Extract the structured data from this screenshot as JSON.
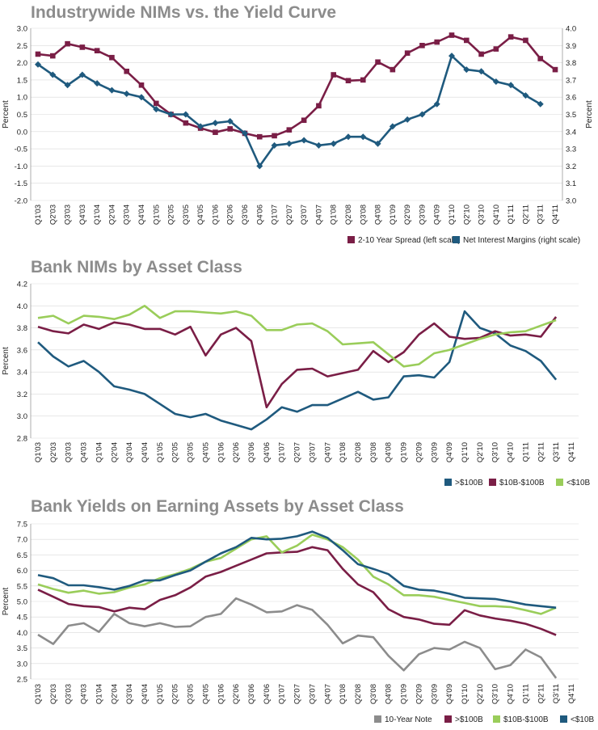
{
  "chart_data": [
    {
      "type": "line",
      "title": "Industrywide NIMs vs. the Yield Curve",
      "ylabel": "Percent",
      "y2label": "Percent",
      "ylim": [
        -2.0,
        3.0
      ],
      "y2lim": [
        3.0,
        4.0
      ],
      "yticks": [
        "3.0",
        "2.5",
        "2.0",
        "1.5",
        "1.0",
        "0.5",
        "0.0",
        "-0.5",
        "-1.0",
        "-1.5",
        "-2.0"
      ],
      "y2ticks": [
        "4.0",
        "3.9",
        "3.8",
        "3.7",
        "3.6",
        "3.5",
        "3.4",
        "3.3",
        "3.2",
        "3.1",
        "3.0"
      ],
      "categories": [
        "Q1'03",
        "Q2'03",
        "Q3'03",
        "Q4'03",
        "Q1'04",
        "Q2'04",
        "Q3'04",
        "Q4'04",
        "Q1'05",
        "Q2'05",
        "Q3'05",
        "Q4'05",
        "Q1'06",
        "Q2'06",
        "Q3'06",
        "Q4'06",
        "Q1'07",
        "Q2'07",
        "Q3'07",
        "Q4'07",
        "Q1'08",
        "Q2'08",
        "Q3'08",
        "Q4'08",
        "Q1'09",
        "Q2'09",
        "Q3'09",
        "Q4'09",
        "Q1'10",
        "Q2'10",
        "Q3'10",
        "Q4'10",
        "Q1'11",
        "Q2'11",
        "Q3'11",
        "Q4'11"
      ],
      "series": [
        {
          "name": "2-10 Year Spread (left scale)",
          "color": "#7a1e46",
          "marker": "square",
          "axis": "left",
          "values": [
            2.25,
            2.2,
            2.55,
            2.45,
            2.35,
            2.15,
            1.75,
            1.35,
            0.82,
            0.5,
            0.25,
            0.1,
            -0.02,
            0.08,
            -0.05,
            -0.15,
            -0.12,
            0.05,
            0.33,
            0.75,
            1.65,
            1.48,
            1.5,
            2.02,
            1.8,
            2.28,
            2.5,
            2.6,
            2.8,
            2.65,
            2.25,
            2.4,
            2.75,
            2.65,
            2.12,
            1.8
          ]
        },
        {
          "name": "Net Interest Margins (right scale)",
          "color": "#1f5a7e",
          "marker": "diamond",
          "axis": "right",
          "values": [
            3.79,
            3.73,
            3.67,
            3.73,
            3.68,
            3.64,
            3.62,
            3.6,
            3.53,
            3.5,
            3.5,
            3.43,
            3.45,
            3.46,
            3.39,
            3.2,
            3.32,
            3.33,
            3.35,
            3.32,
            3.33,
            3.37,
            3.37,
            3.33,
            3.43,
            3.47,
            3.5,
            3.56,
            3.84,
            3.76,
            3.75,
            3.69,
            3.67,
            3.61,
            3.56,
            null
          ]
        }
      ],
      "legend": "bottom-right"
    },
    {
      "type": "line",
      "title": "Bank NIMs by Asset Class",
      "ylabel": "Percent",
      "ylim": [
        2.8,
        4.2
      ],
      "yticks": [
        "4.2",
        "4.0",
        "3.8",
        "3.6",
        "3.4",
        "3.2",
        "3.0",
        "2.8"
      ],
      "categories": [
        "Q1'03",
        "Q2'03",
        "Q3'03",
        "Q4'03",
        "Q1'04",
        "Q2'04",
        "Q3'04",
        "Q4'04",
        "Q1'05",
        "Q2'05",
        "Q3'05",
        "Q4'05",
        "Q1'06",
        "Q2'06",
        "Q3'06",
        "Q4'06",
        "Q1'07",
        "Q2'07",
        "Q3'07",
        "Q4'07",
        "Q1'08",
        "Q2'08",
        "Q3'08",
        "Q4'08",
        "Q1'09",
        "Q2'09",
        "Q3'09",
        "Q4'09",
        "Q1'10",
        "Q2'10",
        "Q3'10",
        "Q4'10",
        "Q1'11",
        "Q2'11",
        "Q3'11",
        "Q4'11"
      ],
      "series": [
        {
          "name": ">$100B",
          "color": "#1f5a7e",
          "values": [
            3.67,
            3.54,
            3.45,
            3.5,
            3.4,
            3.27,
            3.24,
            3.2,
            3.11,
            3.02,
            2.99,
            3.02,
            2.96,
            2.92,
            2.88,
            2.97,
            3.08,
            3.04,
            3.1,
            3.1,
            3.16,
            3.22,
            3.15,
            3.17,
            3.36,
            3.37,
            3.35,
            3.49,
            3.95,
            3.8,
            3.75,
            3.64,
            3.59,
            3.5,
            3.33,
            null
          ]
        },
        {
          "name": "$10B-$100B",
          "color": "#7a1e46",
          "values": [
            3.81,
            3.77,
            3.75,
            3.83,
            3.79,
            3.85,
            3.83,
            3.79,
            3.79,
            3.74,
            3.81,
            3.55,
            3.74,
            3.8,
            3.68,
            3.08,
            3.29,
            3.42,
            3.43,
            3.36,
            3.39,
            3.42,
            3.59,
            3.49,
            3.58,
            3.74,
            3.84,
            3.72,
            3.7,
            3.71,
            3.77,
            3.73,
            3.74,
            3.72,
            3.9,
            null
          ]
        },
        {
          "name": "<$10B",
          "color": "#9acd5a",
          "values": [
            3.89,
            3.91,
            3.84,
            3.91,
            3.9,
            3.88,
            3.92,
            4.0,
            3.89,
            3.95,
            3.95,
            3.94,
            3.93,
            3.95,
            3.91,
            3.78,
            3.78,
            3.83,
            3.84,
            3.77,
            3.65,
            3.66,
            3.67,
            3.56,
            3.45,
            3.47,
            3.57,
            3.6,
            3.65,
            3.7,
            3.74,
            3.76,
            3.77,
            3.82,
            3.87,
            null
          ]
        }
      ],
      "legend": "bottom-right"
    },
    {
      "type": "line",
      "title": "Bank Yields on Earning Assets by Asset Class",
      "ylabel": "Percent",
      "ylim": [
        2.5,
        7.5
      ],
      "yticks": [
        "7.5",
        "7.0",
        "6.5",
        "6.0",
        "5.5",
        "5.0",
        "4.5",
        "4.0",
        "3.5",
        "3.0",
        "2.5"
      ],
      "categories": [
        "Q1'03",
        "Q2'03",
        "Q3'03",
        "Q4'03",
        "Q1'04",
        "Q2'04",
        "Q3'04",
        "Q4'04",
        "Q1'05",
        "Q2'05",
        "Q3'05",
        "Q4'05",
        "Q1'06",
        "Q2'06",
        "Q3'06",
        "Q4'06",
        "Q1'07",
        "Q2'07",
        "Q3'07",
        "Q4'07",
        "Q1'08",
        "Q2'08",
        "Q3'08",
        "Q4'08",
        "Q1'09",
        "Q2'09",
        "Q3'09",
        "Q4'09",
        "Q1'10",
        "Q2'10",
        "Q3'10",
        "Q4'10",
        "Q1'11",
        "Q2'11",
        "Q3'11",
        "Q4'11"
      ],
      "series": [
        {
          "name": "10-Year Note",
          "color": "#8c8c8c",
          "values": [
            3.93,
            3.63,
            4.22,
            4.3,
            4.02,
            4.6,
            4.3,
            4.2,
            4.3,
            4.18,
            4.2,
            4.5,
            4.6,
            5.1,
            4.9,
            4.65,
            4.68,
            4.88,
            4.73,
            4.25,
            3.65,
            3.9,
            3.85,
            3.25,
            2.78,
            3.3,
            3.5,
            3.45,
            3.7,
            3.5,
            2.82,
            2.95,
            3.45,
            3.2,
            2.53,
            null
          ]
        },
        {
          "name": ">$100B",
          "color": "#7a1e46",
          "values": [
            5.38,
            5.15,
            4.92,
            4.85,
            4.82,
            4.68,
            4.8,
            4.75,
            5.05,
            5.2,
            5.45,
            5.8,
            5.95,
            6.15,
            6.35,
            6.55,
            6.58,
            6.6,
            6.75,
            6.65,
            6.05,
            5.55,
            5.3,
            4.75,
            4.5,
            4.42,
            4.28,
            4.25,
            4.72,
            4.55,
            4.45,
            4.38,
            4.28,
            4.12,
            3.92,
            null
          ]
        },
        {
          "name": "$10B-$100B",
          "color": "#9acd5a",
          "values": [
            5.55,
            5.4,
            5.28,
            5.35,
            5.25,
            5.3,
            5.45,
            5.55,
            5.75,
            5.88,
            6.05,
            6.28,
            6.4,
            6.7,
            7.0,
            7.1,
            6.58,
            6.8,
            7.15,
            7.0,
            6.75,
            6.35,
            5.8,
            5.55,
            5.2,
            5.2,
            5.15,
            5.05,
            4.95,
            4.85,
            4.85,
            4.82,
            4.72,
            4.6,
            4.8,
            null
          ]
        },
        {
          "name": "<$10B",
          "color": "#1f5a7e",
          "values": [
            5.85,
            5.75,
            5.52,
            5.52,
            5.46,
            5.38,
            5.5,
            5.68,
            5.68,
            5.85,
            6.0,
            6.28,
            6.55,
            6.75,
            7.05,
            7.0,
            7.02,
            7.1,
            7.25,
            7.05,
            6.65,
            6.2,
            6.05,
            5.88,
            5.5,
            5.38,
            5.35,
            5.25,
            5.12,
            5.1,
            5.08,
            5.0,
            4.9,
            4.85,
            4.8,
            null
          ]
        }
      ],
      "legend": "bottom-right"
    }
  ]
}
